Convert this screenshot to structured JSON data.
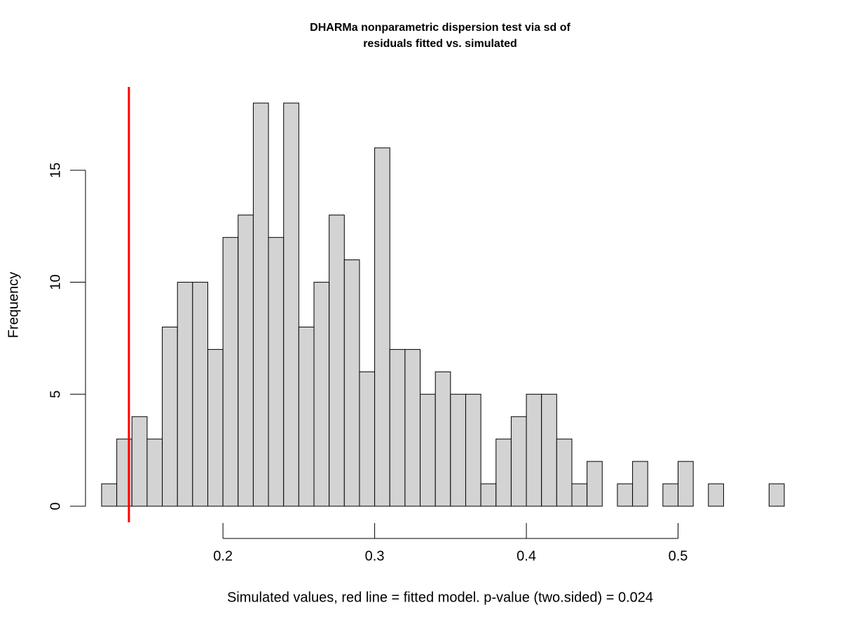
{
  "chart_data": {
    "type": "histogram",
    "title": [
      "DHARMa nonparametric dispersion test via sd of",
      "residuals fitted vs. simulated"
    ],
    "x_label": "Simulated values, red line = fitted model. p-value (two.sided) = 0.024",
    "y_label": "Frequency",
    "bins": [
      0.12,
      0.13,
      0.14,
      0.15,
      0.16,
      0.17,
      0.18,
      0.19,
      0.2,
      0.21,
      0.22,
      0.23,
      0.24,
      0.25,
      0.26,
      0.27,
      0.28,
      0.29,
      0.3,
      0.31,
      0.32,
      0.33,
      0.34,
      0.35,
      0.36,
      0.37,
      0.38,
      0.39,
      0.4,
      0.41,
      0.42,
      0.43,
      0.44,
      0.45,
      0.46,
      0.47,
      0.48,
      0.49,
      0.5,
      0.51,
      0.52,
      0.53,
      0.54,
      0.55,
      0.56,
      0.57
    ],
    "counts": [
      1,
      3,
      4,
      3,
      8,
      10,
      10,
      7,
      12,
      13,
      18,
      12,
      18,
      8,
      10,
      13,
      11,
      6,
      16,
      7,
      7,
      5,
      6,
      5,
      5,
      1,
      3,
      4,
      5,
      5,
      3,
      1,
      2,
      0,
      1,
      2,
      0,
      1,
      2,
      0,
      1,
      0,
      0,
      0,
      1
    ],
    "color": "#d3d3d3",
    "reference_line": {
      "value": 0.138,
      "color": "#ff0000"
    },
    "xlim": [
      0.102,
      0.588
    ],
    "xticks": [
      0.2,
      0.3,
      0.4,
      0.5
    ],
    "ylim": [
      -0.72,
      18.72
    ],
    "yticks": [
      0,
      5,
      10,
      15
    ]
  }
}
